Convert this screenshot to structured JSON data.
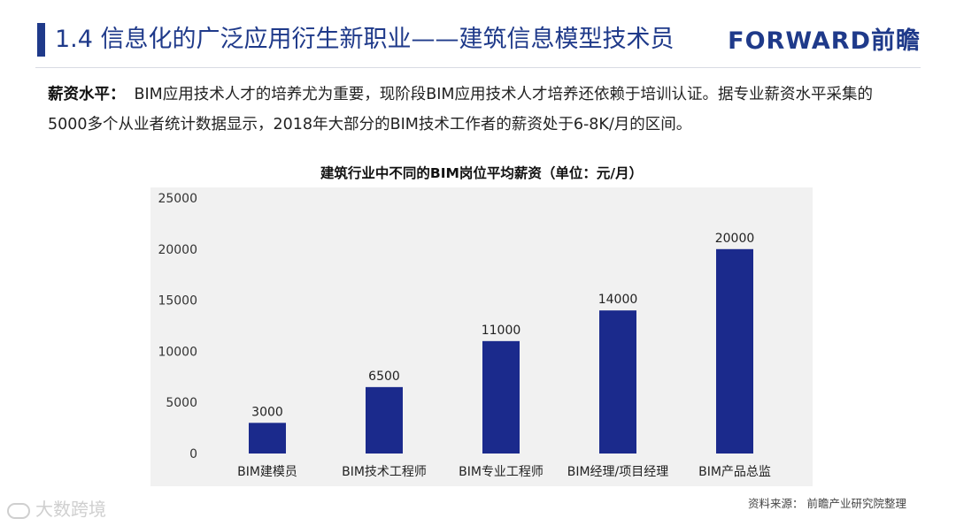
{
  "header": {
    "title": "1.4 信息化的广泛应用衍生新职业——建筑信息模型技术员",
    "brand": "FORWARD前瞻"
  },
  "intro": {
    "lead": "薪资水平：",
    "text": "BIM应用技术人才的培养尤为重要，现阶段BIM应用技术人才培养还依赖于培训认证。据专业薪资水平采集的5000多个从业者统计数据显示，2018年大部分的BIM技术工作者的薪资处于6-8K/月的区间。"
  },
  "chart_data": {
    "type": "bar",
    "title": "建筑行业中不同的BIM岗位平均薪资（单位：元/月）",
    "categories": [
      "BIM建模员",
      "BIM技术工程师",
      "BIM专业工程师",
      "BIM经理/项目经理",
      "BIM产品总监"
    ],
    "values": [
      3000,
      6500,
      11000,
      14000,
      20000
    ],
    "ylim": [
      0,
      25000
    ],
    "yticks": [
      "0",
      "5000",
      "10000",
      "15000",
      "20000",
      "25000"
    ],
    "data_labels": [
      "3000",
      "6500",
      "11000",
      "14000",
      "20000"
    ],
    "bar_color": "#1b2a8c",
    "grid": false,
    "xlabel": "",
    "ylabel": ""
  },
  "footer": {
    "source": "资料来源：  前瞻产业研究院整理",
    "watermark": "大数跨境"
  },
  "colors": {
    "accent": "#1f3a8a",
    "panel": "#f1f1f1"
  }
}
